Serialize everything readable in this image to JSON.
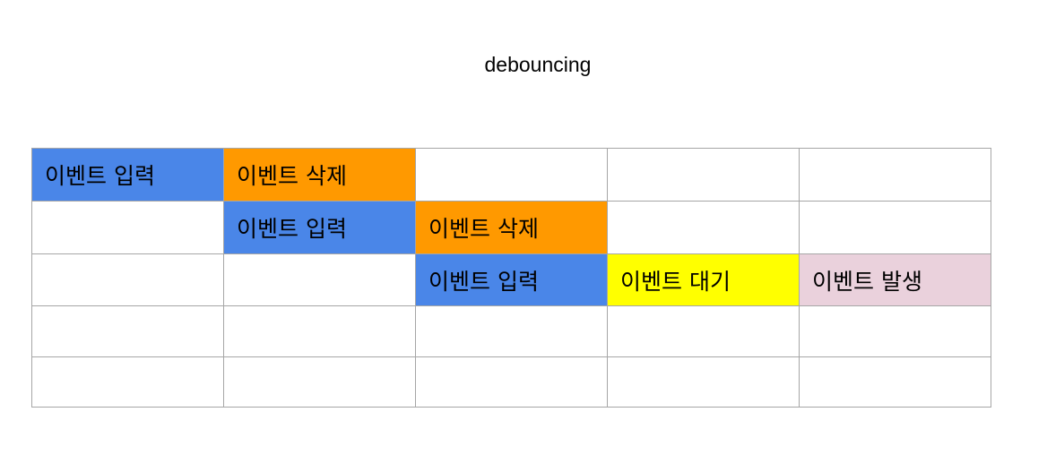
{
  "title": "debouncing",
  "colors": {
    "input": "#4a86e8",
    "delete": "#ff9900",
    "wait": "#ffff00",
    "fire": "#ead1dc",
    "empty": "#ffffff",
    "border": "#a6a6a6"
  },
  "rows": [
    [
      {
        "text": "이벤트 입력",
        "kind": "input"
      },
      {
        "text": "이벤트 삭제",
        "kind": "delete"
      },
      {
        "text": "",
        "kind": "empty"
      },
      {
        "text": "",
        "kind": "empty"
      },
      {
        "text": "",
        "kind": "empty"
      }
    ],
    [
      {
        "text": "",
        "kind": "empty"
      },
      {
        "text": "이벤트 입력",
        "kind": "input"
      },
      {
        "text": "이벤트 삭제",
        "kind": "delete"
      },
      {
        "text": "",
        "kind": "empty"
      },
      {
        "text": "",
        "kind": "empty"
      }
    ],
    [
      {
        "text": "",
        "kind": "empty"
      },
      {
        "text": "",
        "kind": "empty"
      },
      {
        "text": "이벤트 입력",
        "kind": "input"
      },
      {
        "text": "이벤트 대기",
        "kind": "wait"
      },
      {
        "text": "이벤트 발생",
        "kind": "fire"
      }
    ],
    [
      {
        "text": "",
        "kind": "empty"
      },
      {
        "text": "",
        "kind": "empty"
      },
      {
        "text": "",
        "kind": "empty"
      },
      {
        "text": "",
        "kind": "empty"
      },
      {
        "text": "",
        "kind": "empty"
      }
    ],
    [
      {
        "text": "",
        "kind": "empty"
      },
      {
        "text": "",
        "kind": "empty"
      },
      {
        "text": "",
        "kind": "empty"
      },
      {
        "text": "",
        "kind": "empty"
      },
      {
        "text": "",
        "kind": "empty"
      }
    ]
  ]
}
